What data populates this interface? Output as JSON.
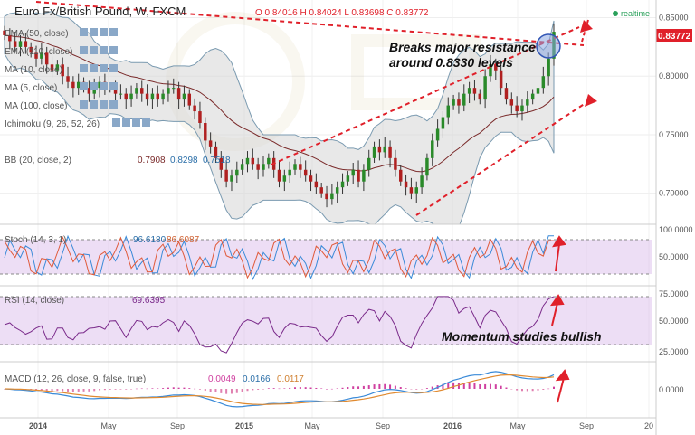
{
  "header": {
    "symbol": "Euro Fx/British Pound, W, FXCM",
    "ohlc": "O 0.84016  H 0.84024  L 0.83698  C 0.83772",
    "realtime": "realtime",
    "last_price": "0.83772",
    "last_price_color": "#e0202a"
  },
  "indicators": [
    {
      "label": "EMA (50, close)",
      "value": ""
    },
    {
      "label": "EMA (110, close)",
      "value": ""
    },
    {
      "label": "MA (10, close)",
      "value": ""
    },
    {
      "label": "MA (5, close)",
      "value": ""
    },
    {
      "label": "MA (100, close)",
      "value": ""
    },
    {
      "label": "Ichimoku (9, 26, 52, 26)",
      "value": ""
    }
  ],
  "bb": {
    "label": "BB (20, close, 2)",
    "mid": "0.7908",
    "upper": "0.8298",
    "lower": "0.7518"
  },
  "annotations": {
    "resistance_line1": "Breaks major resistance",
    "resistance_line2": "around 0.8330 levels",
    "momentum": "Momentum studies bullish"
  },
  "stoch": {
    "label": "Stoch (14, 3, 1)",
    "k": "96.6180",
    "d": "86.6087",
    "ticks": [
      "100.0000",
      "50.0000"
    ]
  },
  "rsi": {
    "label": "RSI (14, close)",
    "value": "69.6395",
    "ticks": [
      "75.0000",
      "50.0000",
      "25.0000"
    ]
  },
  "macd": {
    "label": "MACD (12, 26, close, 9, false, true)",
    "hist": "0.0049",
    "macd": "0.0166",
    "signal": "0.0117",
    "ticks": [
      "0.0000"
    ]
  },
  "chart_data": {
    "type": "candlestick",
    "x_labels": [
      "2014",
      "May",
      "Sep",
      "2015",
      "May",
      "Sep",
      "2016",
      "May",
      "Sep",
      "20"
    ],
    "y_ticks": [
      "0.85000",
      "0.80000",
      "0.75000",
      "0.70000"
    ],
    "y_range": [
      0.675,
      0.862
    ],
    "close_series_approx": [
      0.835,
      0.83,
      0.825,
      0.83,
      0.825,
      0.82,
      0.815,
      0.82,
      0.81,
      0.805,
      0.81,
      0.8,
      0.795,
      0.79,
      0.795,
      0.79,
      0.785,
      0.79,
      0.795,
      0.79,
      0.79,
      0.785,
      0.785,
      0.78,
      0.785,
      0.79,
      0.785,
      0.78,
      0.785,
      0.78,
      0.785,
      0.79,
      0.79,
      0.78,
      0.785,
      0.775,
      0.77,
      0.76,
      0.745,
      0.74,
      0.73,
      0.72,
      0.71,
      0.715,
      0.72,
      0.725,
      0.73,
      0.725,
      0.72,
      0.725,
      0.73,
      0.72,
      0.71,
      0.715,
      0.72,
      0.725,
      0.72,
      0.715,
      0.71,
      0.705,
      0.7,
      0.695,
      0.7,
      0.705,
      0.71,
      0.715,
      0.72,
      0.71,
      0.72,
      0.73,
      0.74,
      0.735,
      0.74,
      0.73,
      0.72,
      0.71,
      0.705,
      0.7,
      0.705,
      0.715,
      0.73,
      0.745,
      0.755,
      0.765,
      0.775,
      0.78,
      0.775,
      0.785,
      0.79,
      0.785,
      0.78,
      0.8,
      0.81,
      0.805,
      0.79,
      0.78,
      0.775,
      0.77,
      0.775,
      0.78,
      0.785,
      0.79,
      0.8,
      0.815,
      0.838
    ],
    "bb_upper": 0.8298,
    "bb_mid": 0.7908,
    "bb_lower": 0.7518,
    "last": 0.83772
  }
}
